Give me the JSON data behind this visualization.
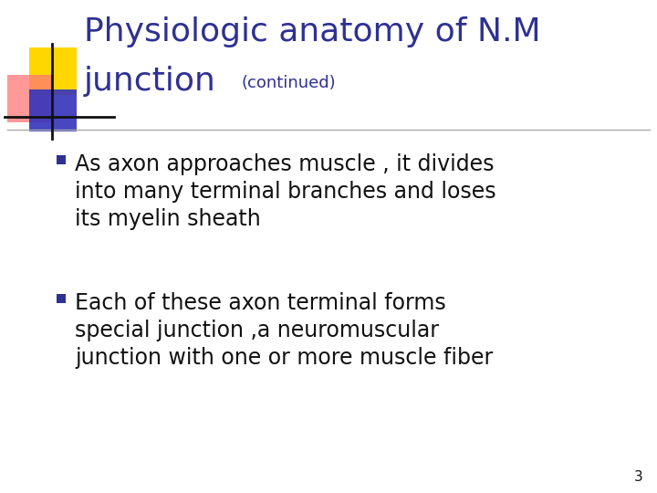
{
  "bg_color": "#ffffff",
  "title_line1": "Physiologic anatomy of N.M",
  "title_line2": "junction",
  "subtitle": "(continued)",
  "title_color": "#2E3192",
  "bullet_color": "#2E3192",
  "bullet1_line1": "As axon approaches muscle , it divides",
  "bullet1_line2": "into many terminal branches and loses",
  "bullet1_line3": "its myelin sheath",
  "bullet2_line1": "Each of these axon terminal forms",
  "bullet2_line2": "special junction ,a neuromuscular",
  "bullet2_line3": "junction with one or more muscle fiber",
  "text_color": "#111111",
  "page_number": "3",
  "deco_yellow": "#FFD700",
  "deco_red": "#FF7777",
  "deco_blue": "#3333BB",
  "deco_line_color": "#111111",
  "separator_color": "#aaaaaa",
  "title_fontsize": 26,
  "subtitle_fontsize": 13,
  "body_fontsize": 17,
  "page_fontsize": 11
}
